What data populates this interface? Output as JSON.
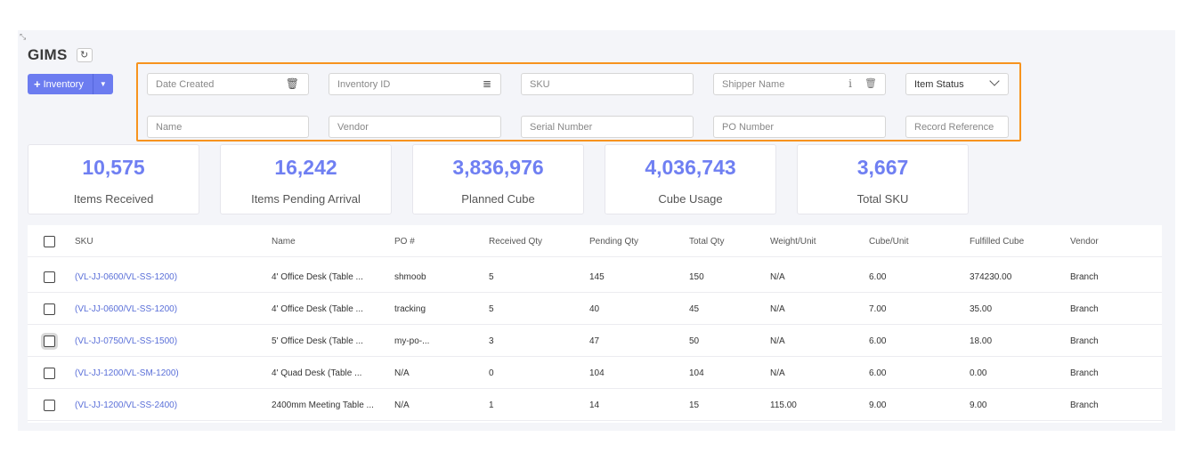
{
  "app": {
    "title": "GIMS",
    "refresh_icon": "refresh-icon",
    "expand_icon": "expand-icon"
  },
  "toolbar": {
    "add_label": "Inventory",
    "add_icon": "plus-icon",
    "caret_icon": "caret-down-icon"
  },
  "filters": {
    "date_created": "Date Created",
    "inventory_id": "Inventory ID",
    "sku": "SKU",
    "shipper_name": "Shipper Name",
    "item_status": "Item Status",
    "name": "Name",
    "vendor": "Vendor",
    "serial_number": "Serial Number",
    "po_number": "PO Number",
    "record_reference": "Record Reference",
    "highlight_color": "#f7931e"
  },
  "stats": [
    {
      "value": "10,575",
      "label": "Items Received"
    },
    {
      "value": "16,242",
      "label": "Items Pending Arrival"
    },
    {
      "value": "3,836,976",
      "label": "Planned Cube"
    },
    {
      "value": "4,036,743",
      "label": "Cube Usage"
    },
    {
      "value": "3,667",
      "label": "Total SKU"
    }
  ],
  "table": {
    "columns": [
      "SKU",
      "Name",
      "PO #",
      "Received Qty",
      "Pending Qty",
      "Total Qty",
      "Weight/Unit",
      "Cube/Unit",
      "Fulfilled Cube",
      "Vendor"
    ],
    "rows": [
      [
        "(VL-JJ-0600/VL-SS-1200)",
        "4' Office Desk (Table ...",
        "shmoob",
        "5",
        "145",
        "150",
        "N/A",
        "6.00",
        "374230.00",
        "Branch"
      ],
      [
        "(VL-JJ-0600/VL-SS-1200)",
        "4' Office Desk (Table ...",
        "tracking",
        "5",
        "40",
        "45",
        "N/A",
        "7.00",
        "35.00",
        "Branch"
      ],
      [
        "(VL-JJ-0750/VL-SS-1500)",
        "5' Office Desk (Table ...",
        "my-po-...",
        "3",
        "47",
        "50",
        "N/A",
        "6.00",
        "18.00",
        "Branch"
      ],
      [
        "(VL-JJ-1200/VL-SM-1200)",
        "4' Quad Desk (Table ...",
        "N/A",
        "0",
        "104",
        "104",
        "N/A",
        "6.00",
        "0.00",
        "Branch"
      ],
      [
        "(VL-JJ-1200/VL-SS-2400)",
        "2400mm Meeting Table ...",
        "N/A",
        "1",
        "14",
        "15",
        "115.00",
        "9.00",
        "9.00",
        "Branch"
      ]
    ]
  },
  "colors": {
    "accent": "#6c7cf0",
    "stat_value": "#6f7ff2",
    "link": "#5a6fd8"
  }
}
